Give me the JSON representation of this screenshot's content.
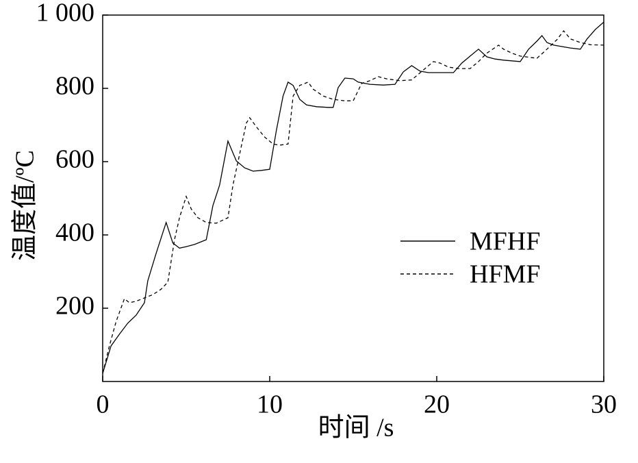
{
  "chart_data": {
    "type": "line",
    "xlabel": "时间 /s",
    "ylabel": "温度值/ºC",
    "xlim": [
      0,
      30
    ],
    "xticks": [
      0,
      10,
      20,
      30
    ],
    "ylim": [
      0,
      1000
    ],
    "yticks": [
      200,
      400,
      600,
      800,
      {
        "value": 1000,
        "label": "1 000"
      }
    ],
    "legend": "right",
    "series": [
      {
        "name": "MFHF",
        "color": "#000000",
        "dash": "solid",
        "x": [
          0,
          0.5,
          1,
          1.5,
          2,
          2.5,
          2.7,
          3.2,
          3.8,
          4.2,
          4.6,
          5,
          5.5,
          6.2,
          6.6,
          7,
          7.5,
          8,
          8.5,
          9,
          9.5,
          10,
          10.4,
          10.8,
          11.1,
          11.4,
          11.8,
          12.2,
          12.8,
          13.5,
          13.8,
          14.1,
          14.5,
          15,
          15.3,
          16,
          16.8,
          17.5,
          18,
          18.5,
          19,
          19.5,
          20,
          21,
          21.5,
          22,
          22.5,
          23,
          23.5,
          24,
          25,
          25.5,
          26,
          26.3,
          26.6,
          27,
          28,
          28.6,
          29,
          29.5,
          30
        ],
        "values": [
          22,
          97,
          129,
          159,
          181,
          215,
          275,
          350,
          434,
          378,
          364,
          368,
          374,
          387,
          480,
          536,
          656,
          602,
          583,
          574,
          576,
          579,
          686,
          779,
          817,
          808,
          770,
          755,
          750,
          748,
          748,
          802,
          828,
          826,
          817,
          811,
          809,
          811,
          845,
          862,
          847,
          843,
          843,
          843,
          869,
          888,
          907,
          886,
          880,
          877,
          873,
          907,
          929,
          944,
          925,
          918,
          910,
          907,
          935,
          961,
          981
        ]
      },
      {
        "name": "HFMF",
        "color": "#000000",
        "dash": "dashed",
        "x": [
          0,
          0.4,
          0.8,
          1.3,
          1.6,
          2,
          2.5,
          3,
          3.5,
          3.9,
          4.3,
          4.6,
          5,
          5.3,
          5.7,
          6.2,
          6.8,
          7.5,
          7.8,
          8.2,
          8.6,
          8.8,
          9.2,
          9.7,
          10.2,
          10.6,
          11.1,
          11.4,
          11.8,
          12.3,
          12.6,
          13.2,
          13.8,
          14.5,
          15,
          15.5,
          16,
          16.5,
          17,
          17.8,
          18.5,
          19.3,
          19.8,
          20.2,
          20.7,
          21.3,
          22,
          22.5,
          23,
          23.7,
          24,
          24.5,
          25,
          26,
          26.6,
          27.2,
          27.6,
          28,
          28.6,
          29.2,
          30
        ],
        "values": [
          22,
          97,
          163,
          226,
          215,
          219,
          228,
          237,
          252,
          271,
          387,
          447,
          505,
          471,
          447,
          434,
          432,
          447,
          536,
          621,
          705,
          720,
          695,
          667,
          648,
          645,
          648,
          779,
          808,
          817,
          798,
          779,
          770,
          766,
          766,
          813,
          821,
          832,
          826,
          821,
          823,
          854,
          873,
          869,
          858,
          854,
          854,
          873,
          896,
          918,
          907,
          896,
          888,
          882,
          907,
          933,
          957,
          935,
          925,
          919,
          918
        ]
      }
    ]
  }
}
